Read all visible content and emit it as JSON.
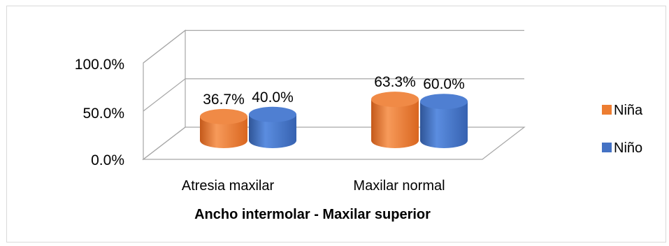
{
  "chart_data": {
    "type": "bar",
    "style": "3d-cylinder",
    "title": "",
    "xlabel": "Ancho intermolar - Maxilar superior",
    "ylabel": "",
    "categories": [
      "Atresia maxilar",
      "Maxilar normal"
    ],
    "series": [
      {
        "name": "Niña",
        "values": [
          36.7,
          63.3
        ],
        "labels": [
          "36.7%",
          "63.3%"
        ],
        "color": "#ED7D31"
      },
      {
        "name": "Niño",
        "values": [
          40.0,
          60.0
        ],
        "labels": [
          "40.0%",
          "60.0%"
        ],
        "color": "#4472C4"
      }
    ],
    "yticks": [
      "0.0%",
      "50.0%",
      "100.0%"
    ],
    "ylim": [
      0,
      100
    ],
    "grid": true,
    "legend": "right"
  }
}
